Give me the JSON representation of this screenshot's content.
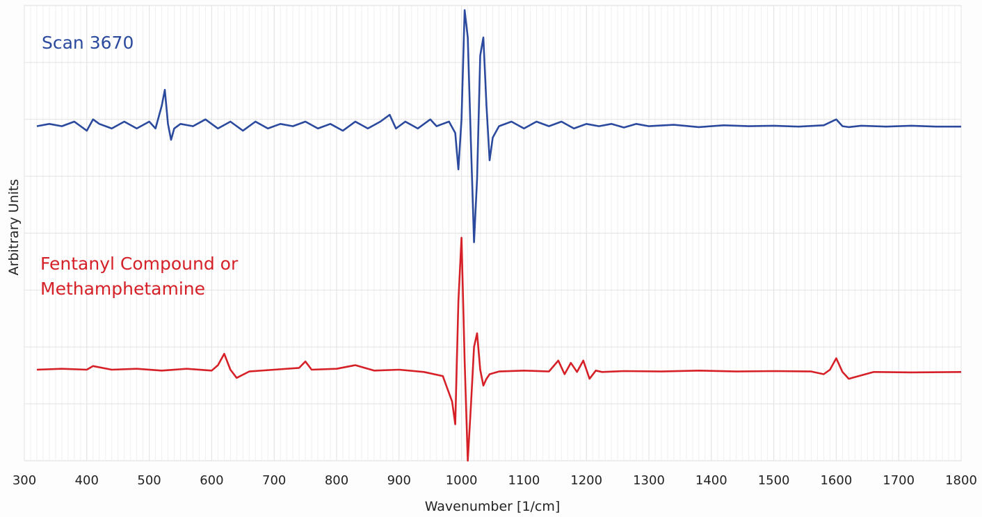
{
  "chart_data": {
    "type": "line",
    "title": "",
    "xlabel": "Wavenumber [1/cm]",
    "ylabel": "Arbitrary Units",
    "xlim": [
      300,
      1800
    ],
    "ylim": [
      0,
      1
    ],
    "x_ticks": [
      300,
      400,
      500,
      600,
      700,
      800,
      900,
      1000,
      1100,
      1200,
      1300,
      1400,
      1500,
      1600,
      1700,
      1800
    ],
    "grid": true,
    "legend": "none",
    "series": [
      {
        "name": "Scan 3670",
        "color": "#2b4a9e",
        "x": [
          320,
          340,
          360,
          380,
          400,
          410,
          420,
          440,
          460,
          480,
          500,
          510,
          520,
          525,
          530,
          535,
          540,
          550,
          570,
          590,
          610,
          630,
          650,
          670,
          690,
          710,
          730,
          750,
          770,
          790,
          810,
          830,
          850,
          870,
          885,
          895,
          910,
          930,
          950,
          960,
          980,
          990,
          995,
          1000,
          1005,
          1010,
          1015,
          1020,
          1025,
          1030,
          1035,
          1040,
          1045,
          1050,
          1060,
          1080,
          1100,
          1120,
          1140,
          1160,
          1180,
          1200,
          1220,
          1240,
          1260,
          1280,
          1300,
          1340,
          1380,
          1420,
          1460,
          1500,
          1540,
          1580,
          1600,
          1610,
          1620,
          1640,
          1680,
          1720,
          1760,
          1800
        ],
        "y": [
          0.735,
          0.74,
          0.735,
          0.745,
          0.725,
          0.75,
          0.74,
          0.73,
          0.745,
          0.73,
          0.745,
          0.73,
          0.78,
          0.815,
          0.74,
          0.705,
          0.73,
          0.74,
          0.735,
          0.75,
          0.73,
          0.745,
          0.725,
          0.745,
          0.73,
          0.74,
          0.735,
          0.745,
          0.73,
          0.74,
          0.725,
          0.745,
          0.73,
          0.745,
          0.76,
          0.73,
          0.745,
          0.73,
          0.75,
          0.735,
          0.745,
          0.72,
          0.64,
          0.75,
          0.99,
          0.93,
          0.7,
          0.48,
          0.62,
          0.89,
          0.93,
          0.78,
          0.66,
          0.71,
          0.735,
          0.745,
          0.73,
          0.745,
          0.735,
          0.745,
          0.73,
          0.74,
          0.735,
          0.74,
          0.732,
          0.74,
          0.735,
          0.738,
          0.733,
          0.737,
          0.735,
          0.736,
          0.734,
          0.737,
          0.75,
          0.735,
          0.733,
          0.736,
          0.734,
          0.736,
          0.734,
          0.734
        ]
      },
      {
        "name": "Fentanyl Compound or Methamphetamine",
        "color": "#d62027",
        "x": [
          320,
          360,
          400,
          410,
          440,
          480,
          520,
          560,
          600,
          610,
          620,
          630,
          640,
          660,
          700,
          740,
          750,
          760,
          800,
          830,
          860,
          900,
          940,
          970,
          985,
          990,
          995,
          1000,
          1005,
          1010,
          1015,
          1020,
          1025,
          1030,
          1035,
          1040,
          1045,
          1060,
          1100,
          1140,
          1155,
          1165,
          1175,
          1185,
          1195,
          1205,
          1215,
          1225,
          1260,
          1320,
          1380,
          1440,
          1500,
          1560,
          1580,
          1590,
          1600,
          1610,
          1620,
          1660,
          1720,
          1800
        ],
        "y": [
          0.2,
          0.202,
          0.2,
          0.208,
          0.2,
          0.202,
          0.198,
          0.202,
          0.198,
          0.21,
          0.235,
          0.2,
          0.182,
          0.196,
          0.2,
          0.204,
          0.218,
          0.2,
          0.202,
          0.21,
          0.198,
          0.2,
          0.195,
          0.186,
          0.13,
          0.08,
          0.35,
          0.49,
          0.22,
          0.0,
          0.12,
          0.25,
          0.28,
          0.2,
          0.165,
          0.18,
          0.19,
          0.196,
          0.198,
          0.196,
          0.22,
          0.19,
          0.215,
          0.195,
          0.22,
          0.18,
          0.198,
          0.195,
          0.197,
          0.196,
          0.198,
          0.196,
          0.197,
          0.196,
          0.19,
          0.2,
          0.225,
          0.195,
          0.18,
          0.195,
          0.194,
          0.195
        ]
      }
    ],
    "annotations": [
      {
        "text": "Scan 3670",
        "color": "#2b4a9e"
      },
      {
        "text": "Fentanyl Compound or",
        "color": "#d62027"
      },
      {
        "text": "Methamphetamine",
        "color": "#d62027"
      }
    ]
  }
}
